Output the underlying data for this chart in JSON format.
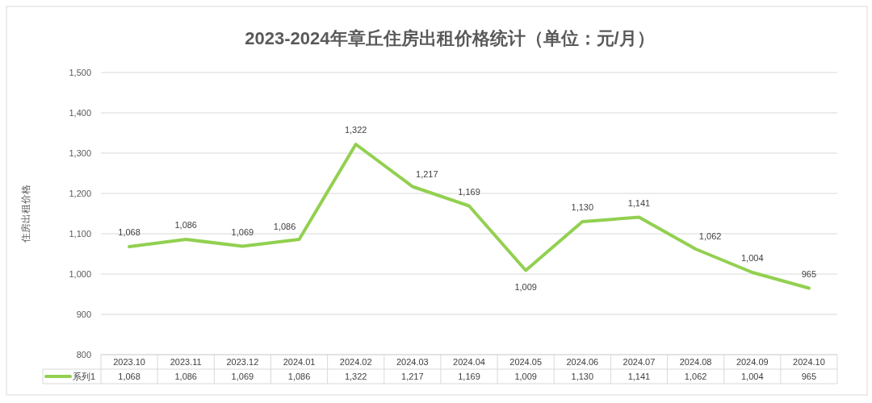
{
  "chart_data": {
    "type": "line",
    "title": "2023-2024年章丘住房出租价格统计（单位：元/月）",
    "ylabel": "住房出租价格",
    "categories": [
      "2023.10",
      "2023.11",
      "2023.12",
      "2024.01",
      "2024.02",
      "2024.03",
      "2024.04",
      "2024.05",
      "2024.06",
      "2024.07",
      "2024.08",
      "2024.09",
      "2024.10"
    ],
    "series": [
      {
        "name": "系列1",
        "color": "#92d050",
        "values": [
          1068,
          1086,
          1069,
          1086,
          1322,
          1217,
          1169,
          1009,
          1130,
          1141,
          1062,
          1004,
          965
        ],
        "value_labels": [
          "1,068",
          "1,086",
          "1,069",
          "1,086",
          "1,322",
          "1,217",
          "1,169",
          "1,009",
          "1,130",
          "1,141",
          "1,062",
          "1,004",
          "965"
        ]
      }
    ],
    "ylim": [
      800,
      1500
    ],
    "yticks": [
      800,
      900,
      {
        "value": 1000,
        "label": "1,000"
      },
      {
        "value": 1100,
        "label": "1,100"
      },
      {
        "value": 1200,
        "label": "1,200"
      },
      {
        "value": 1300,
        "label": "1,300"
      },
      {
        "value": 1400,
        "label": "1,400"
      },
      {
        "value": 1500,
        "label": "1,500"
      }
    ],
    "grid": "y",
    "legend": "bottom",
    "line_style": "solid"
  }
}
